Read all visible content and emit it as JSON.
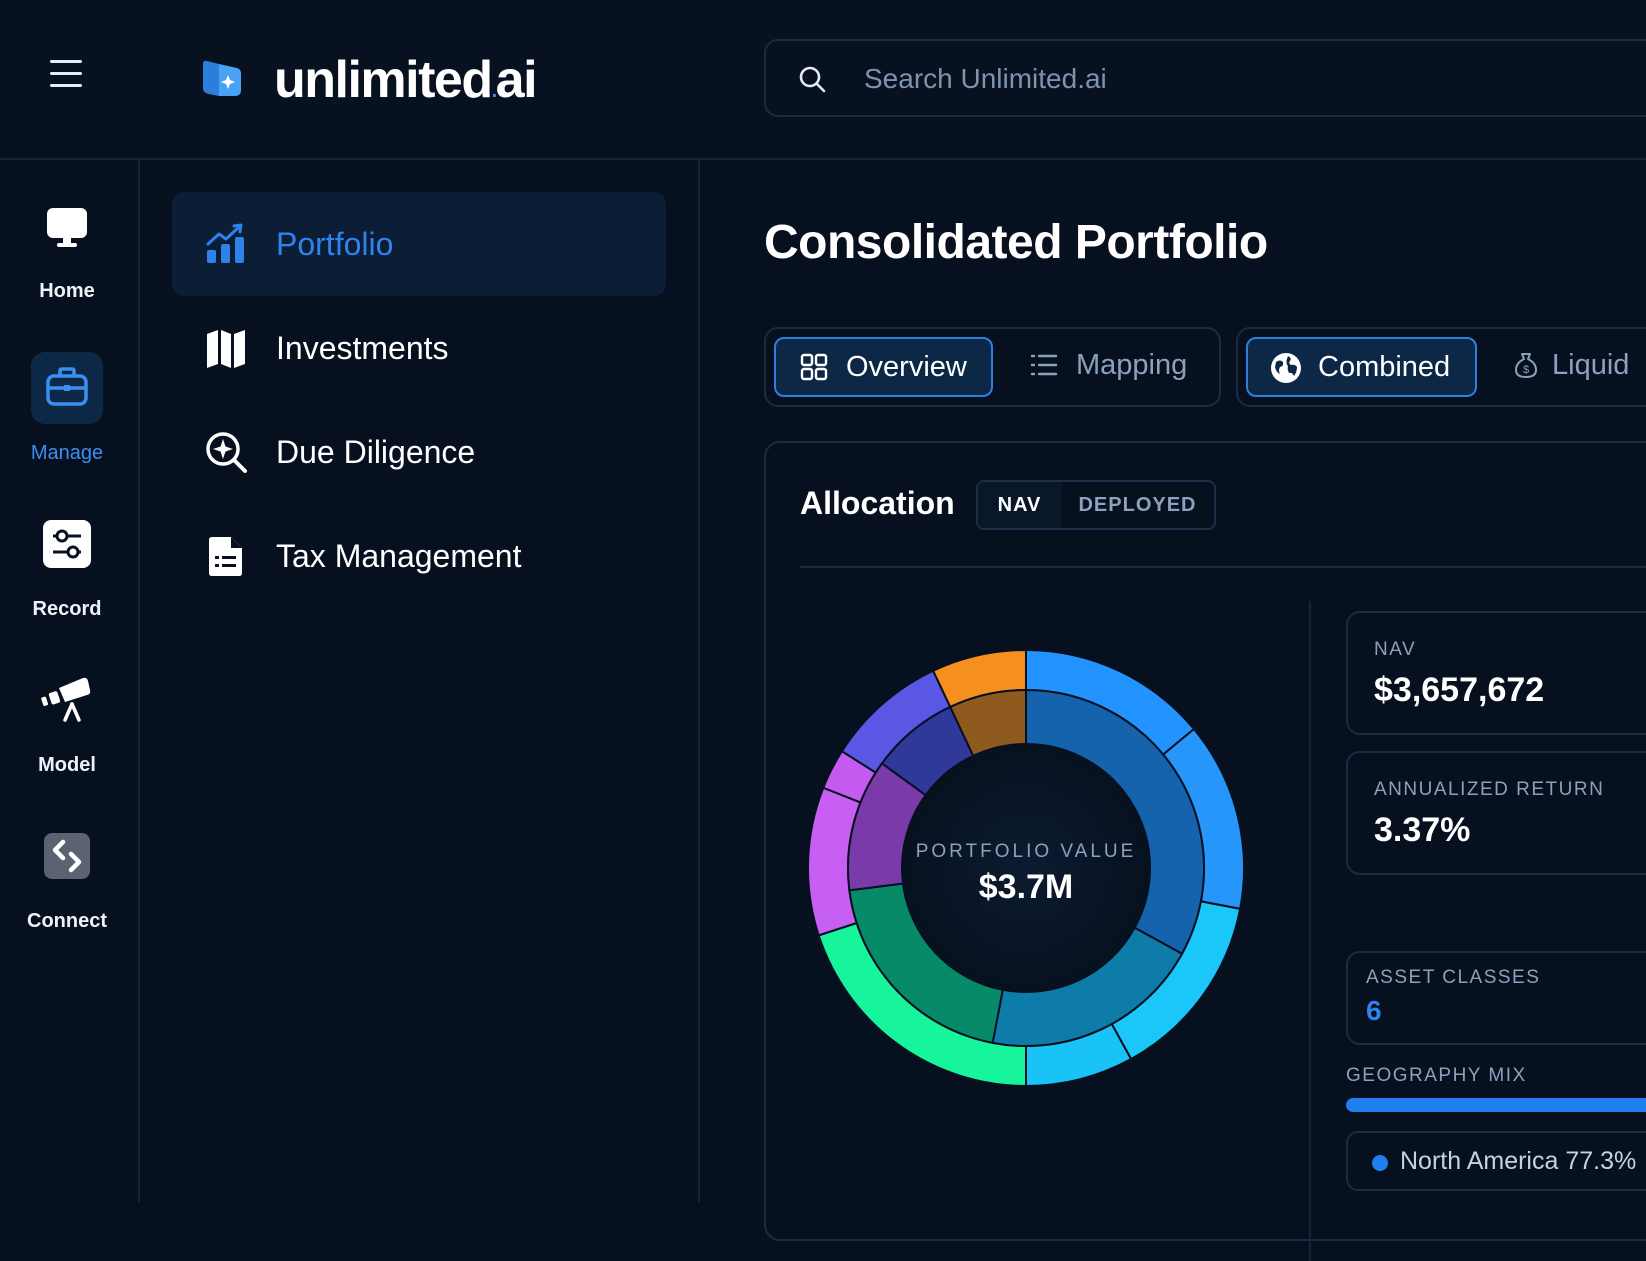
{
  "header": {
    "brand_name": "unlimited",
    "brand_suffix": "ai",
    "search_placeholder": "Search Unlimited.ai"
  },
  "rail": {
    "items": [
      {
        "label": "Home",
        "icon": "monitor-icon"
      },
      {
        "label": "Manage",
        "icon": "briefcase-icon",
        "active": true
      },
      {
        "label": "Record",
        "icon": "sliders-icon"
      },
      {
        "label": "Model",
        "icon": "telescope-icon"
      },
      {
        "label": "Connect",
        "icon": "code-link-icon"
      }
    ]
  },
  "subnav": {
    "items": [
      {
        "label": "Portfolio",
        "icon": "chart-growth-icon",
        "active": true
      },
      {
        "label": "Investments",
        "icon": "map-icon"
      },
      {
        "label": "Due Diligence",
        "icon": "magnify-sparkle-icon"
      },
      {
        "label": "Tax Management",
        "icon": "document-list-icon"
      }
    ]
  },
  "main": {
    "title": "Consolidated Portfolio",
    "view_tabs": [
      {
        "label": "Overview",
        "active": true
      },
      {
        "label": "Mapping"
      }
    ],
    "scope_tabs": [
      {
        "label": "Combined",
        "active": true
      },
      {
        "label": "Liquid"
      }
    ],
    "allocation": {
      "title": "Allocation",
      "toggle": [
        {
          "label": "NAV",
          "active": true
        },
        {
          "label": "DEPLOYED"
        }
      ],
      "donut_caption": "PORTFOLIO VALUE",
      "donut_value": "$3.7M"
    },
    "stats": {
      "nav_label": "NAV",
      "nav_value": "$3,657,672",
      "return_label": "ANNUALIZED RETURN",
      "return_value": "3.37%",
      "asset_classes_label": "ASSET CLASSES",
      "asset_classes_value": "6",
      "geo_label": "GEOGRAPHY MIX",
      "geo_legend": "North America 77.3%"
    }
  },
  "colors": {
    "accent": "#2f82ea",
    "background": "#07101e",
    "geo_dot": "#1f7ef0"
  },
  "chart_data": {
    "type": "pie",
    "variant": "nested-donut",
    "title": "PORTFOLIO VALUE",
    "center_value": "$3.7M",
    "outer_ring": [
      {
        "color": "#2393ff",
        "value": 14
      },
      {
        "color": "#2796fb",
        "value": 14
      },
      {
        "color": "#1bc6f8",
        "value": 14
      },
      {
        "color": "#1ac3f5",
        "value": 8
      },
      {
        "color": "#16f59c",
        "value": 20
      },
      {
        "color": "#c75ff2",
        "value": 11
      },
      {
        "color": "#c45af0",
        "value": 3
      },
      {
        "color": "#5957e3",
        "value": 9
      },
      {
        "color": "#f5901e",
        "value": 7
      }
    ],
    "inner_ring": [
      {
        "color": "#1563ad",
        "value": 33
      },
      {
        "color": "#0e7ca9",
        "value": 20
      },
      {
        "color": "#078a68",
        "value": 20
      },
      {
        "color": "#7a3aaa",
        "value": 12
      },
      {
        "color": "#2f399a",
        "value": 8
      },
      {
        "color": "#8e5a1e",
        "value": 7
      }
    ]
  }
}
